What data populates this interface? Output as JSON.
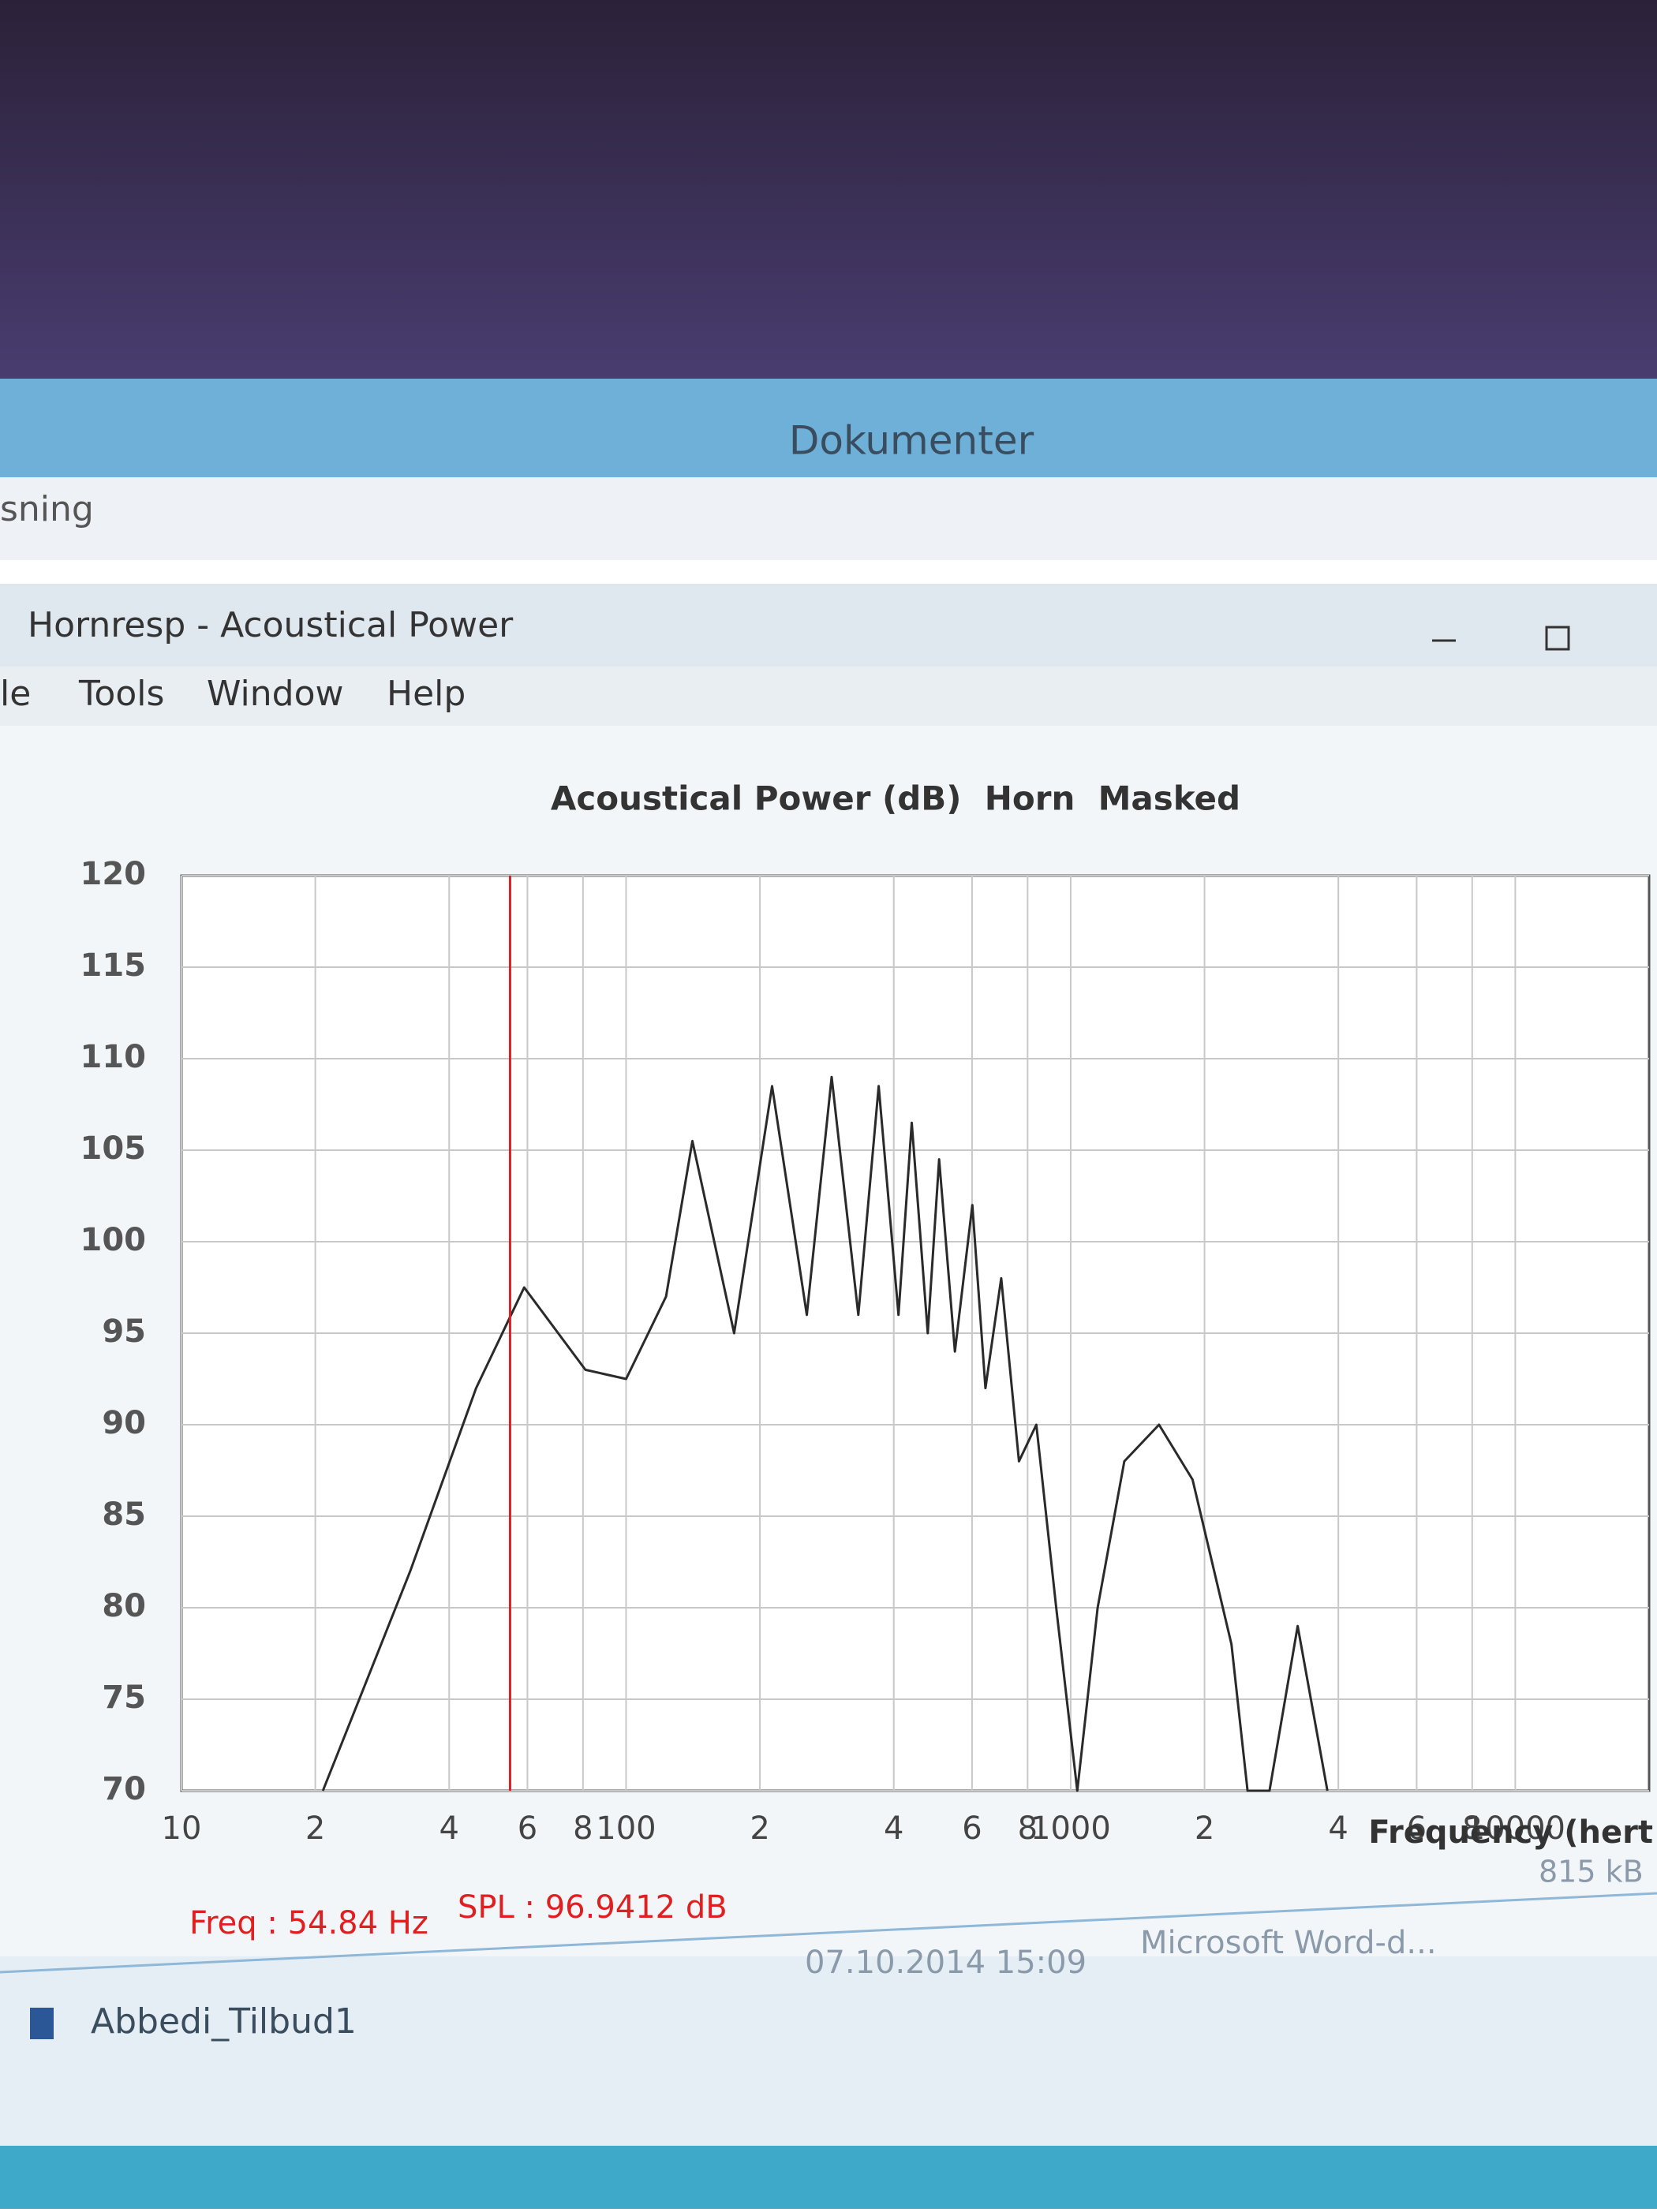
{
  "window": {
    "explorer_title": "Dokumenter",
    "explorer_toolbar": "sning",
    "app_title": "Hornresp - Acoustical Power",
    "menu": [
      "le",
      "Tools",
      "Window",
      "Help"
    ]
  },
  "chart_data": {
    "type": "line",
    "title": "Acoustical Power (dB)  Horn  Masked",
    "x_label": "Frequency (hert",
    "log_x": true,
    "grid": true,
    "x": [
      20.8,
      32.7,
      46,
      59,
      81,
      100,
      123,
      141,
      175,
      213,
      255,
      290,
      333,
      370,
      410,
      439,
      477,
      506,
      549,
      601,
      643,
      698,
      765,
      837,
      928,
      1035,
      1150,
      1320,
      1580,
      1880,
      2300,
      2500,
      2800,
      3240,
      3780
    ],
    "series": [
      {
        "color": "#2a2a2a",
        "values": [
          70,
          82,
          92,
          97.5,
          93,
          92.5,
          97,
          105.5,
          95,
          108.5,
          96,
          109,
          96,
          108.5,
          96,
          106.5,
          95,
          104.5,
          94,
          102,
          92,
          98,
          88,
          90,
          80,
          70,
          80,
          88,
          90,
          87,
          78,
          70,
          70,
          79,
          70
        ]
      }
    ],
    "xlim": [
      10,
      20000
    ],
    "xticks": [
      10,
      {
        "value": 20,
        "label": "2"
      },
      {
        "value": 40,
        "label": "4"
      },
      {
        "value": 60,
        "label": "6"
      },
      {
        "value": 80,
        "label": "8"
      },
      100,
      {
        "value": 200,
        "label": "2"
      },
      {
        "value": 400,
        "label": "4"
      },
      {
        "value": 600,
        "label": "6"
      },
      {
        "value": 800,
        "label": "8"
      },
      1000,
      {
        "value": 2000,
        "label": "2"
      },
      {
        "value": 4000,
        "label": "4"
      },
      {
        "value": 6000,
        "label": "6"
      },
      {
        "value": 8000,
        "label": "8"
      },
      10000
    ],
    "ylim": [
      70,
      120
    ],
    "yticks": [
      70,
      75,
      80,
      85,
      90,
      95,
      100,
      105,
      110,
      115,
      120
    ],
    "cursor": {
      "freq": 54.84,
      "color": "#e02020",
      "freq_label": "Freq : 54.84 Hz",
      "spl_label": "SPL : 96.9412 dB"
    }
  },
  "status": {
    "date": "07.10.2014 15:09",
    "type": "Microsoft Word-d...",
    "size": "815 kB",
    "file": "Abbedi_Tilbud1"
  }
}
